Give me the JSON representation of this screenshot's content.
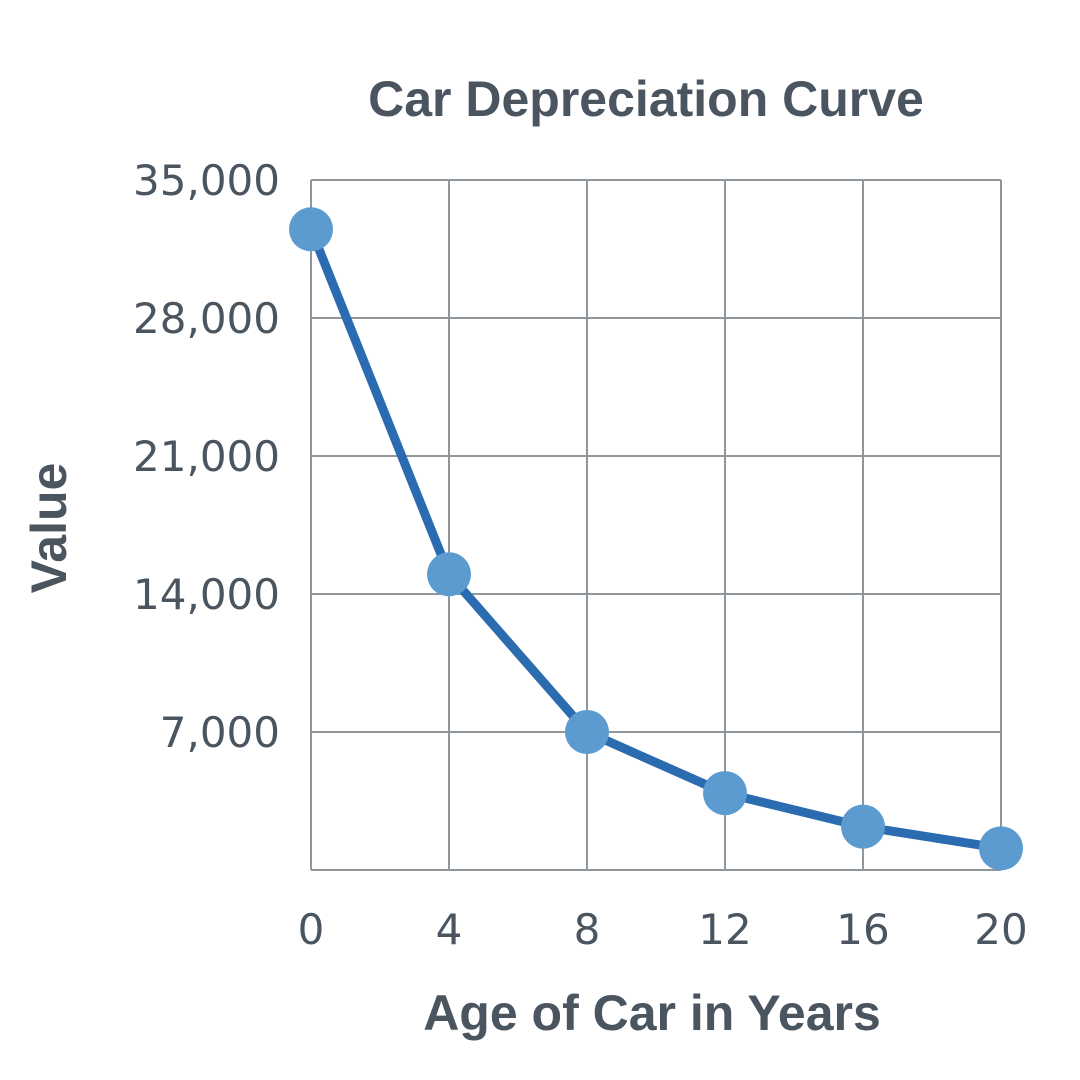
{
  "chart_data": {
    "type": "line",
    "title": "Car Depreciation Curve",
    "xlabel": "Age of Car in Years",
    "ylabel": "Value",
    "x_ticks": [
      "0",
      "4",
      "8",
      "12",
      "16",
      "20"
    ],
    "y_ticks": [
      "35,000",
      "28,000",
      "21,000",
      "14,000",
      "7,000"
    ],
    "xlim": [
      0,
      20
    ],
    "ylim": [
      0,
      35000
    ],
    "grid": true,
    "series": [
      {
        "x": [
          0,
          4,
          8,
          12,
          16,
          20
        ],
        "y": [
          32500,
          15000,
          7000,
          3900,
          2200,
          1100
        ]
      }
    ]
  },
  "colors": {
    "line": "#2b6cb0",
    "marker": "#5b9bd0",
    "grid": "#8f969c",
    "text": "#4a5560"
  }
}
